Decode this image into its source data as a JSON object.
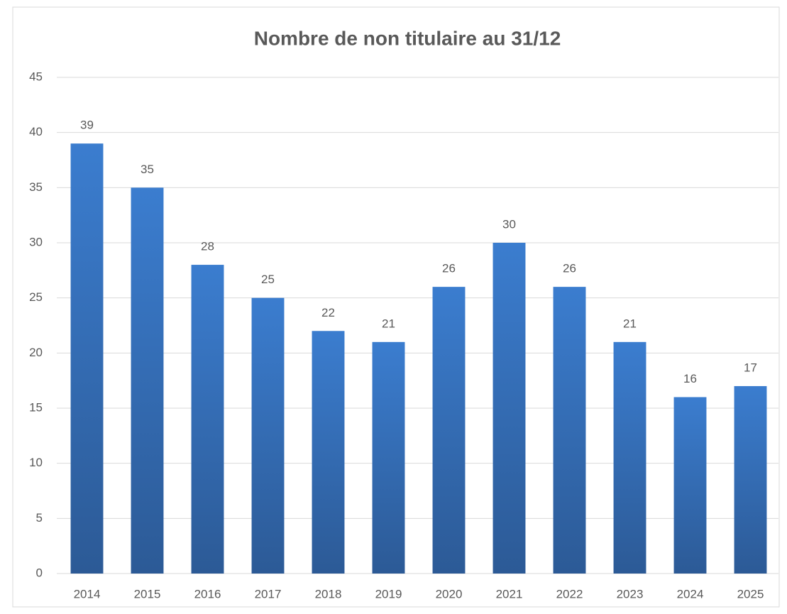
{
  "chart_data": {
    "type": "bar",
    "title": "Nombre de non titulaire au 31/12",
    "categories": [
      "2014",
      "2015",
      "2016",
      "2017",
      "2018",
      "2019",
      "2020",
      "2021",
      "2022",
      "2023",
      "2024",
      "2025"
    ],
    "values": [
      39,
      35,
      28,
      25,
      22,
      21,
      26,
      30,
      26,
      21,
      16,
      17
    ],
    "color": "#3b7dcf",
    "ylim": [
      0,
      45
    ],
    "yticks": [
      0,
      5,
      10,
      15,
      20,
      25,
      30,
      35,
      40,
      45
    ],
    "grid": true
  }
}
